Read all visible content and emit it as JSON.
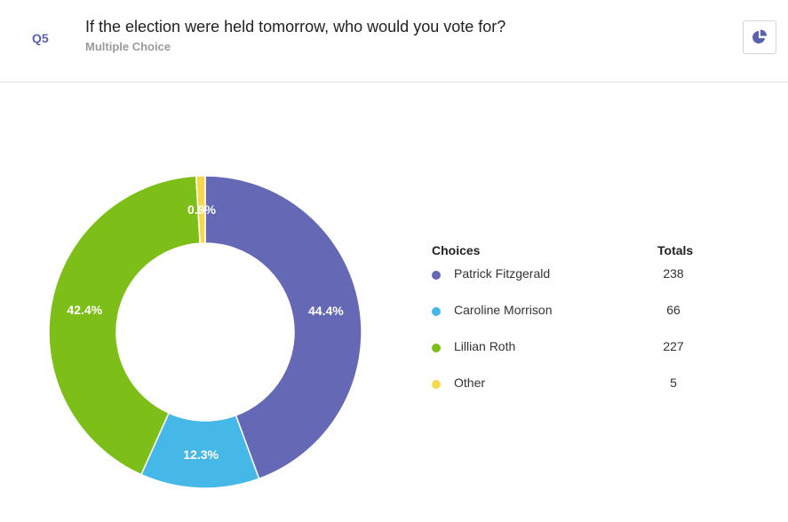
{
  "question": {
    "number": "Q5",
    "title": "If the election were held tomorrow, who would you vote for?",
    "type": "Multiple Choice"
  },
  "toolbar": {
    "chart_icon": "pie-chart-icon"
  },
  "legend": {
    "choices_header": "Choices",
    "totals_header": "Totals"
  },
  "chart_data": {
    "type": "pie",
    "donut": true,
    "categories": [
      "Patrick Fitzgerald",
      "Caroline Morrison",
      "Lillian Roth",
      "Other"
    ],
    "values": [
      238,
      66,
      227,
      5
    ],
    "percent_labels": [
      "44.4%",
      "12.3%",
      "42.4%",
      "0.9%"
    ],
    "colors": [
      "#6468b5",
      "#45b8e7",
      "#7dbf18",
      "#f5d94e"
    ]
  }
}
